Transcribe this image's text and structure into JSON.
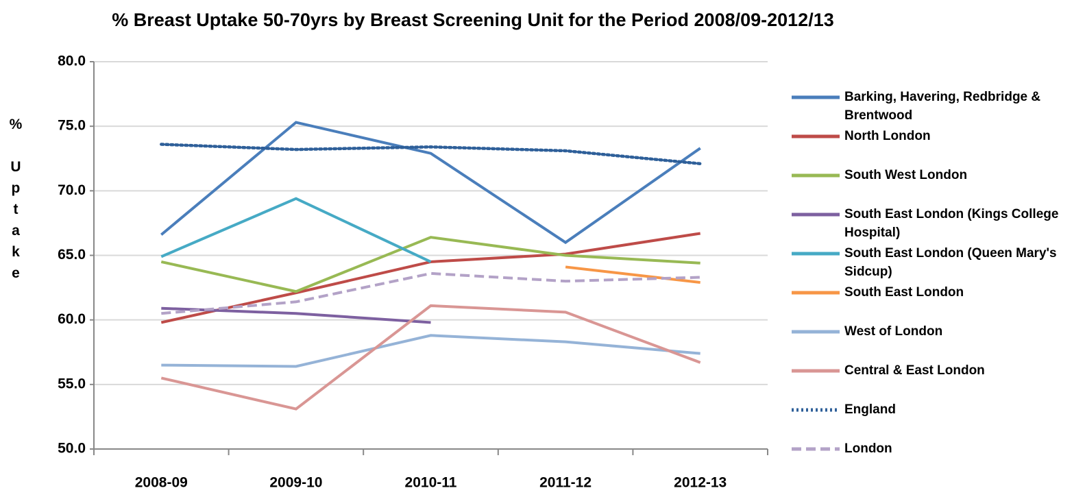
{
  "chart_data": {
    "type": "line",
    "title": "% Breast Uptake  50-70yrs by Breast Screening Unit for the Period 2008/09-2012/13",
    "y_label": "% Uptake",
    "categories": [
      "2008-09",
      "2009-10",
      "2010-11",
      "2011-12",
      "2012-13"
    ],
    "ylim": [
      50,
      80
    ],
    "yticks": [
      {
        "value": 50,
        "label": "50.0"
      },
      {
        "value": 55,
        "label": "55.0"
      },
      {
        "value": 60,
        "label": "60.0"
      },
      {
        "value": 65,
        "label": "65.0"
      },
      {
        "value": 70,
        "label": "70.0"
      },
      {
        "value": 75,
        "label": "75.0"
      },
      {
        "value": 80,
        "label": "80.0"
      }
    ],
    "grid": true,
    "legend": "right",
    "series": [
      {
        "name": "Barking, Havering, Redbridge & Brentwood",
        "color": "#4a7ebb",
        "style": "solid",
        "values": [
          66.6,
          75.3,
          72.9,
          66.0,
          73.3
        ]
      },
      {
        "name": "North London",
        "color": "#be4b48",
        "style": "solid",
        "values": [
          59.8,
          62.1,
          64.5,
          65.1,
          66.7
        ]
      },
      {
        "name": "South West London",
        "color": "#98b954",
        "style": "solid",
        "values": [
          64.5,
          62.2,
          66.4,
          65.0,
          64.4
        ]
      },
      {
        "name": "South East London (Kings College Hospital)",
        "color": "#7d60a0",
        "style": "solid",
        "values": [
          60.9,
          60.5,
          59.8,
          null,
          null
        ]
      },
      {
        "name": "South East London (Queen Mary's Sidcup)",
        "color": "#46aac5",
        "style": "solid",
        "values": [
          64.9,
          69.4,
          64.5,
          null,
          null
        ]
      },
      {
        "name": "South East London",
        "color": "#f79646",
        "style": "solid",
        "values": [
          null,
          null,
          null,
          64.1,
          62.9
        ]
      },
      {
        "name": "West of London",
        "color": "#95b3d7",
        "style": "solid",
        "values": [
          56.5,
          56.4,
          58.8,
          58.3,
          57.4
        ]
      },
      {
        "name": "Central & East London",
        "color": "#d99694",
        "style": "solid",
        "values": [
          55.5,
          53.1,
          61.1,
          60.6,
          56.7
        ]
      },
      {
        "name": "England",
        "color": "#2e5f99",
        "style": "dotted",
        "values": [
          73.6,
          73.2,
          73.4,
          73.1,
          72.1
        ]
      },
      {
        "name": "London",
        "color": "#b3a2c7",
        "style": "dashed",
        "values": [
          60.5,
          61.4,
          63.6,
          63.0,
          63.3
        ]
      }
    ]
  }
}
